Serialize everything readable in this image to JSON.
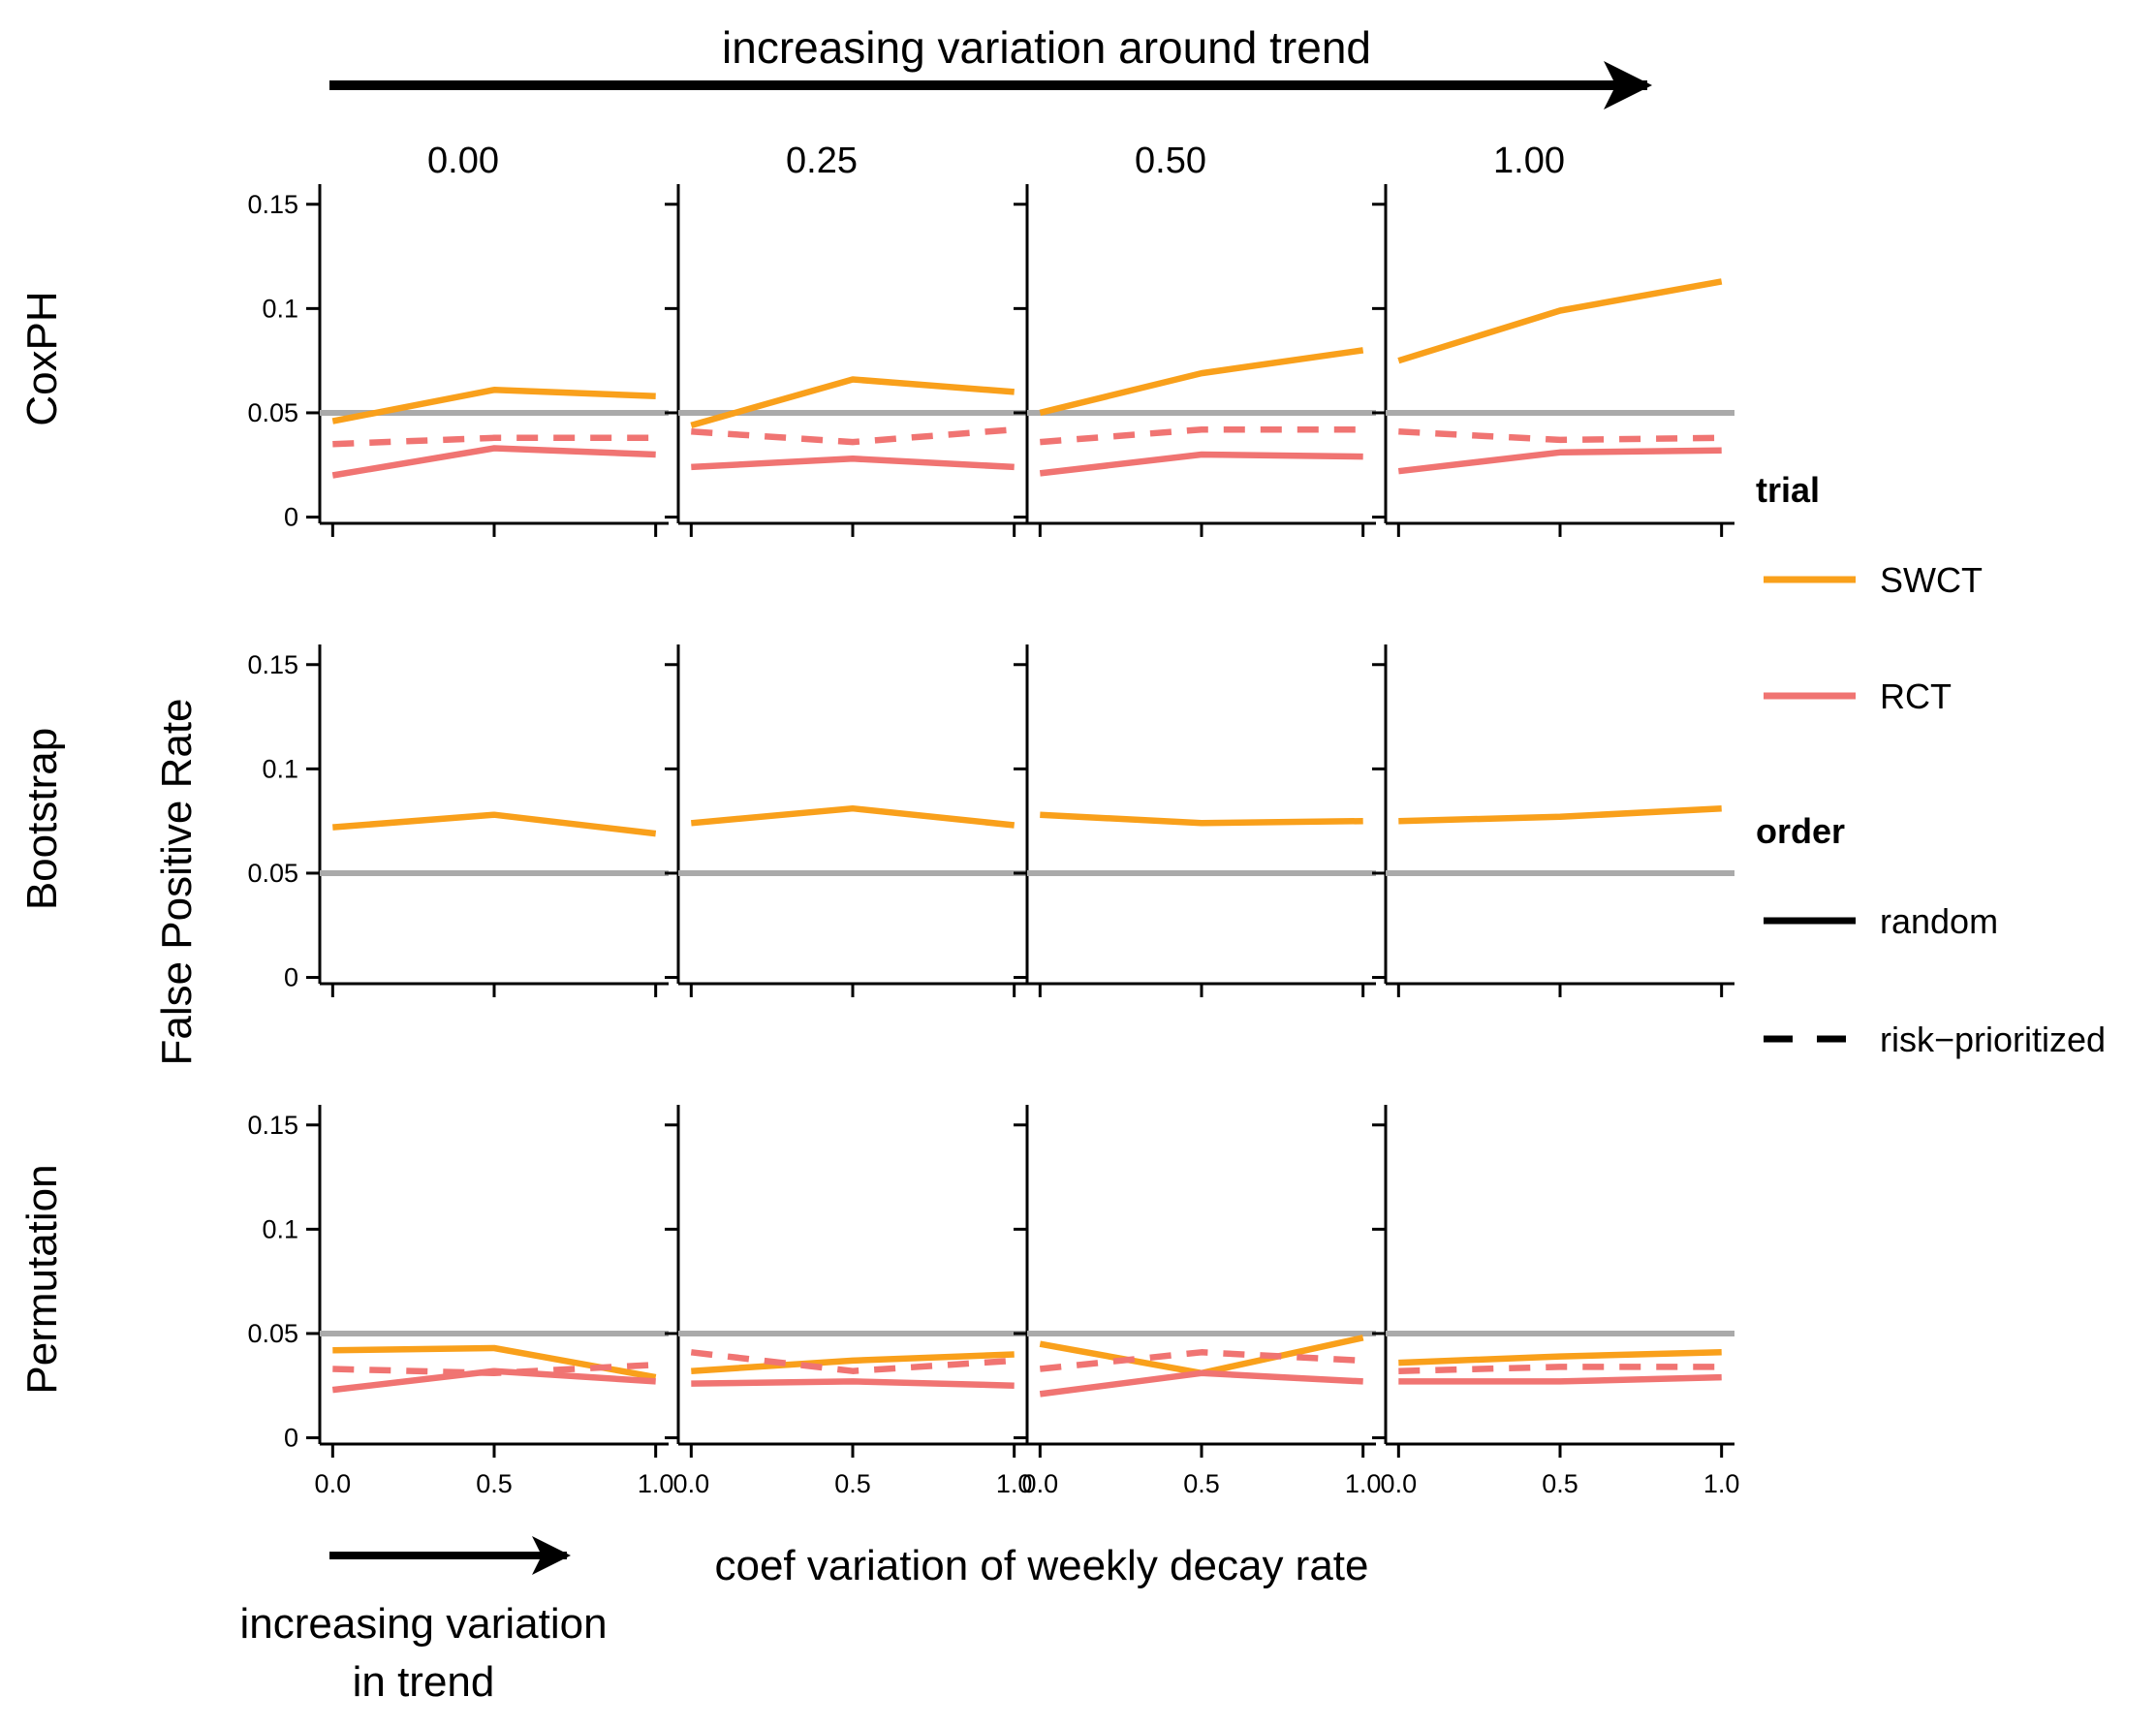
{
  "chart_data": {
    "type": "line",
    "top_caption": "increasing variation around trend",
    "bottom_caption": [
      "increasing variation",
      "in trend"
    ],
    "xlabel": "coef variation of weekly decay rate",
    "ylabel": "False Positive Rate",
    "columns": [
      "0.00",
      "0.25",
      "0.50",
      "1.00"
    ],
    "rows": [
      "CoxPH",
      "Bootstrap",
      "Permutation"
    ],
    "x": [
      0.0,
      0.5,
      1.0
    ],
    "x_tick_labels": [
      "0.0",
      "0.5",
      "1.0"
    ],
    "xlim": [
      -0.04,
      1.04
    ],
    "ylim": [
      -0.003,
      0.155
    ],
    "y_ticks": [
      0,
      0.05,
      0.1,
      0.15
    ],
    "y_tick_labels": [
      "0",
      "0.05",
      "0.1",
      "0.15"
    ],
    "reference_line": 0.05,
    "colors": {
      "SWCT": "#F9A01B",
      "RCT": "#F07472",
      "reference": "#AAAAAA"
    },
    "legend": {
      "trial_title": "trial",
      "trial_items": [
        "SWCT",
        "RCT"
      ],
      "order_title": "order",
      "order_items": [
        "random",
        "risk−prioritized"
      ]
    },
    "panels": [
      [
        {
          "series": [
            {
              "trial": "SWCT",
              "order": "random",
              "values": [
                0.046,
                0.061,
                0.058
              ]
            },
            {
              "trial": "RCT",
              "order": "risk-prioritized",
              "values": [
                0.035,
                0.038,
                0.038
              ]
            },
            {
              "trial": "RCT",
              "order": "random",
              "values": [
                0.02,
                0.033,
                0.03
              ]
            }
          ]
        },
        {
          "series": [
            {
              "trial": "SWCT",
              "order": "random",
              "values": [
                0.044,
                0.066,
                0.06
              ]
            },
            {
              "trial": "RCT",
              "order": "risk-prioritized",
              "values": [
                0.041,
                0.036,
                0.042
              ]
            },
            {
              "trial": "RCT",
              "order": "random",
              "values": [
                0.024,
                0.028,
                0.024
              ]
            }
          ]
        },
        {
          "series": [
            {
              "trial": "SWCT",
              "order": "random",
              "values": [
                0.05,
                0.069,
                0.08
              ]
            },
            {
              "trial": "RCT",
              "order": "risk-prioritized",
              "values": [
                0.036,
                0.042,
                0.042
              ]
            },
            {
              "trial": "RCT",
              "order": "random",
              "values": [
                0.021,
                0.03,
                0.029
              ]
            }
          ]
        },
        {
          "series": [
            {
              "trial": "SWCT",
              "order": "random",
              "values": [
                0.075,
                0.099,
                0.113
              ]
            },
            {
              "trial": "RCT",
              "order": "risk-prioritized",
              "values": [
                0.041,
                0.037,
                0.038
              ]
            },
            {
              "trial": "RCT",
              "order": "random",
              "values": [
                0.022,
                0.031,
                0.032
              ]
            }
          ]
        }
      ],
      [
        {
          "series": [
            {
              "trial": "SWCT",
              "order": "random",
              "values": [
                0.072,
                0.078,
                0.069
              ]
            }
          ]
        },
        {
          "series": [
            {
              "trial": "SWCT",
              "order": "random",
              "values": [
                0.074,
                0.081,
                0.073
              ]
            }
          ]
        },
        {
          "series": [
            {
              "trial": "SWCT",
              "order": "random",
              "values": [
                0.078,
                0.074,
                0.075
              ]
            }
          ]
        },
        {
          "series": [
            {
              "trial": "SWCT",
              "order": "random",
              "values": [
                0.075,
                0.077,
                0.081
              ]
            }
          ]
        }
      ],
      [
        {
          "series": [
            {
              "trial": "SWCT",
              "order": "random",
              "values": [
                0.042,
                0.043,
                0.029
              ]
            },
            {
              "trial": "RCT",
              "order": "risk-prioritized",
              "values": [
                0.033,
                0.031,
                0.035
              ]
            },
            {
              "trial": "RCT",
              "order": "random",
              "values": [
                0.023,
                0.032,
                0.027
              ]
            }
          ]
        },
        {
          "series": [
            {
              "trial": "SWCT",
              "order": "random",
              "values": [
                0.032,
                0.037,
                0.04
              ]
            },
            {
              "trial": "RCT",
              "order": "risk-prioritized",
              "values": [
                0.041,
                0.032,
                0.037
              ]
            },
            {
              "trial": "RCT",
              "order": "random",
              "values": [
                0.026,
                0.027,
                0.025
              ]
            }
          ]
        },
        {
          "series": [
            {
              "trial": "SWCT",
              "order": "random",
              "values": [
                0.045,
                0.031,
                0.048
              ]
            },
            {
              "trial": "RCT",
              "order": "risk-prioritized",
              "values": [
                0.033,
                0.041,
                0.037
              ]
            },
            {
              "trial": "RCT",
              "order": "random",
              "values": [
                0.021,
                0.031,
                0.027
              ]
            }
          ]
        },
        {
          "series": [
            {
              "trial": "SWCT",
              "order": "random",
              "values": [
                0.036,
                0.039,
                0.041
              ]
            },
            {
              "trial": "RCT",
              "order": "risk-prioritized",
              "values": [
                0.032,
                0.034,
                0.034
              ]
            },
            {
              "trial": "RCT",
              "order": "random",
              "values": [
                0.027,
                0.027,
                0.029
              ]
            }
          ]
        }
      ]
    ]
  }
}
